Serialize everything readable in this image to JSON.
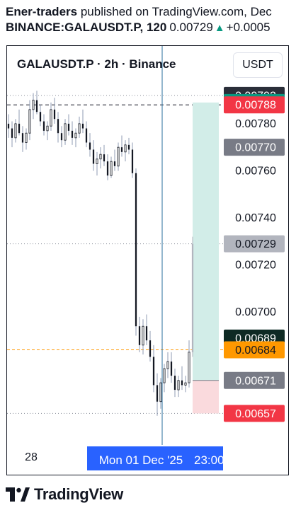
{
  "header": {
    "author": "Ener-traders",
    "published_text": "published on TradingView.com, Dec",
    "symbol_line": "BINANCE:GALAUSDT.P, 120",
    "last_price": "0.00729",
    "change_arrow": "▲",
    "change": "+0.0005"
  },
  "legend": {
    "title": "GALAUSDT.P · 2h · Binance"
  },
  "currency_button": {
    "label": "USDT"
  },
  "footer": {
    "brand": "TradingView",
    "logo_icon": "tradingview-logo-icon"
  },
  "colors": {
    "up": "#131722",
    "down": "#131722",
    "wick": "#8f9bb3",
    "profit_zone": "#d2ede8",
    "loss_zone": "#fadadd",
    "crosshair": "#2962ff",
    "time_badge": "#2962ff"
  },
  "chart_data": {
    "type": "candlestick",
    "symbol": "GALAUSDT.P",
    "interval": "2h",
    "exchange": "Binance",
    "currency": "USDT",
    "ylim": [
      0.00646,
      0.00813
    ],
    "y_ticks": [
      "0.00780",
      "0.00760",
      "0.00740",
      "0.00720",
      "0.00700"
    ],
    "x_ticks": [
      "28"
    ],
    "crosshair_time_label": "Mon 01 Dec '25",
    "right_time_label": "23:00",
    "price_badges": [
      {
        "label": "0.00792",
        "price": 0.00792,
        "bg": "#2a2e39",
        "fg": "#ffffff"
      },
      {
        "label": "0.00789",
        "price": 0.00789,
        "bg": "#089981",
        "fg": "#ffffff"
      },
      {
        "label": "0.00788",
        "price": 0.00788,
        "bg": "#f23645",
        "fg": "#ffffff"
      },
      {
        "label": "0.00770",
        "price": 0.0077,
        "bg": "#787b86",
        "fg": "#ffffff"
      },
      {
        "label": "0.00729",
        "price": 0.00729,
        "bg": "#b2b5be",
        "fg": "#131722"
      },
      {
        "label": "0.00689",
        "price": 0.00689,
        "bg": "#0e2a24",
        "fg": "#ffffff"
      },
      {
        "label": "0.00684",
        "price": 0.00684,
        "bg": "#ff9800",
        "fg": "#131722"
      },
      {
        "label": "0.00671",
        "price": 0.00671,
        "bg": "#787b86",
        "fg": "#ffffff"
      },
      {
        "label": "0.00657",
        "price": 0.00657,
        "bg": "#f23645",
        "fg": "#ffffff"
      }
    ],
    "position": {
      "entry": 0.00671,
      "target": 0.00789,
      "stop": 0.00657
    },
    "reference_lines": [
      {
        "price": 0.00792,
        "style": "dotted"
      },
      {
        "price": 0.00788,
        "style": "dashed"
      },
      {
        "price": 0.00729,
        "style": "dotted"
      },
      {
        "price": 0.00684,
        "style": "dashed-orange"
      },
      {
        "price": 0.00657,
        "style": "dotted"
      }
    ],
    "candles": [
      [
        0.0078,
        0.00784,
        0.00774,
        0.00778
      ],
      [
        0.00778,
        0.00781,
        0.0077,
        0.00774
      ],
      [
        0.00774,
        0.00782,
        0.00772,
        0.0078
      ],
      [
        0.0078,
        0.00786,
        0.00775,
        0.00776
      ],
      [
        0.00776,
        0.00779,
        0.00768,
        0.00772
      ],
      [
        0.00772,
        0.00778,
        0.00769,
        0.00776
      ],
      [
        0.00776,
        0.0079,
        0.00773,
        0.00786
      ],
      [
        0.00786,
        0.00793,
        0.00782,
        0.0079
      ],
      [
        0.0079,
        0.00794,
        0.00784,
        0.00785
      ],
      [
        0.00785,
        0.00788,
        0.00779,
        0.00781
      ],
      [
        0.00781,
        0.00784,
        0.00775,
        0.00777
      ],
      [
        0.00777,
        0.00781,
        0.00773,
        0.00779
      ],
      [
        0.00779,
        0.00789,
        0.00777,
        0.00786
      ],
      [
        0.00786,
        0.00791,
        0.0078,
        0.00782
      ],
      [
        0.00782,
        0.00785,
        0.00772,
        0.00776
      ],
      [
        0.00776,
        0.00779,
        0.0077,
        0.00773
      ],
      [
        0.00773,
        0.00782,
        0.00771,
        0.0078
      ],
      [
        0.0078,
        0.00784,
        0.00775,
        0.00777
      ],
      [
        0.00777,
        0.00781,
        0.00771,
        0.00774
      ],
      [
        0.00774,
        0.00778,
        0.0077,
        0.00776
      ],
      [
        0.00776,
        0.00783,
        0.00774,
        0.0078
      ],
      [
        0.0078,
        0.00786,
        0.00776,
        0.00778
      ],
      [
        0.00778,
        0.00781,
        0.0077,
        0.00772
      ],
      [
        0.00772,
        0.00776,
        0.00766,
        0.00769
      ],
      [
        0.00769,
        0.00773,
        0.0076,
        0.00763
      ],
      [
        0.00763,
        0.00768,
        0.00758,
        0.00765
      ],
      [
        0.00765,
        0.0077,
        0.00761,
        0.00767
      ],
      [
        0.00767,
        0.00771,
        0.00762,
        0.00764
      ],
      [
        0.00764,
        0.00767,
        0.00756,
        0.00758
      ],
      [
        0.00758,
        0.00766,
        0.00757,
        0.00764
      ],
      [
        0.00764,
        0.00769,
        0.0076,
        0.00762
      ],
      [
        0.00762,
        0.00772,
        0.0076,
        0.0077
      ],
      [
        0.0077,
        0.00775,
        0.00766,
        0.00768
      ],
      [
        0.00768,
        0.00773,
        0.00764,
        0.00771
      ],
      [
        0.00771,
        0.00774,
        0.00767,
        0.00769
      ],
      [
        0.00769,
        0.00772,
        0.00757,
        0.00759
      ],
      [
        0.00759,
        0.00761,
        0.0069,
        0.00694
      ],
      [
        0.00694,
        0.00698,
        0.00683,
        0.00686
      ],
      [
        0.00686,
        0.00697,
        0.00682,
        0.00694
      ],
      [
        0.00694,
        0.00699,
        0.00686,
        0.00688
      ],
      [
        0.00688,
        0.00692,
        0.00679,
        0.00681
      ],
      [
        0.00681,
        0.00686,
        0.00666,
        0.00669
      ],
      [
        0.00669,
        0.00674,
        0.00656,
        0.00662
      ],
      [
        0.00662,
        0.00672,
        0.00659,
        0.0067
      ],
      [
        0.0067,
        0.00678,
        0.00666,
        0.00676
      ],
      [
        0.00676,
        0.00683,
        0.00672,
        0.00679
      ],
      [
        0.00679,
        0.00683,
        0.0067,
        0.00673
      ],
      [
        0.00673,
        0.00676,
        0.00664,
        0.00667
      ],
      [
        0.00667,
        0.00673,
        0.00664,
        0.00671
      ],
      [
        0.00671,
        0.00677,
        0.00667,
        0.00669
      ],
      [
        0.00669,
        0.00673,
        0.00666,
        0.0067
      ],
      [
        0.0067,
        0.00688,
        0.00668,
        0.00683
      ],
      [
        0.00683,
        0.00732,
        0.00681,
        0.00729
      ]
    ]
  }
}
